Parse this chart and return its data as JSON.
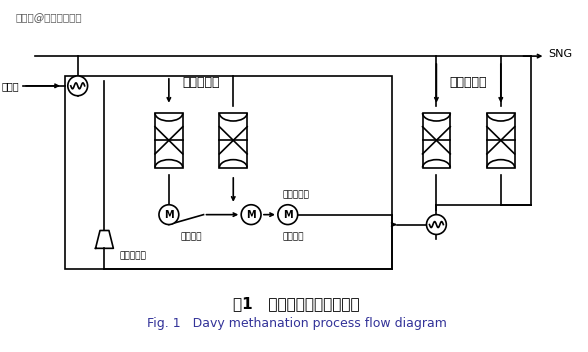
{
  "title_cn": "图1   戴维甲烷化工艺流程图",
  "title_en": "Fig. 1   Davy methanation process flow diagram",
  "watermark": "搜狐号@四川蜀泰化工",
  "labels": {
    "raw_gas": "原料气",
    "bulk_methanation": "大量甲烷化",
    "trim_methanation": "补充甲烷化",
    "sng": "SNG",
    "steam_superheater": "蒸汽过热器",
    "waste_heat_boiler1": "废热锅炉",
    "waste_heat_boiler2": "废热锅炉",
    "recycle_compressor": "循环压缩机"
  },
  "bg_color": "#ffffff",
  "line_color": "#000000",
  "text_color": "#000000"
}
